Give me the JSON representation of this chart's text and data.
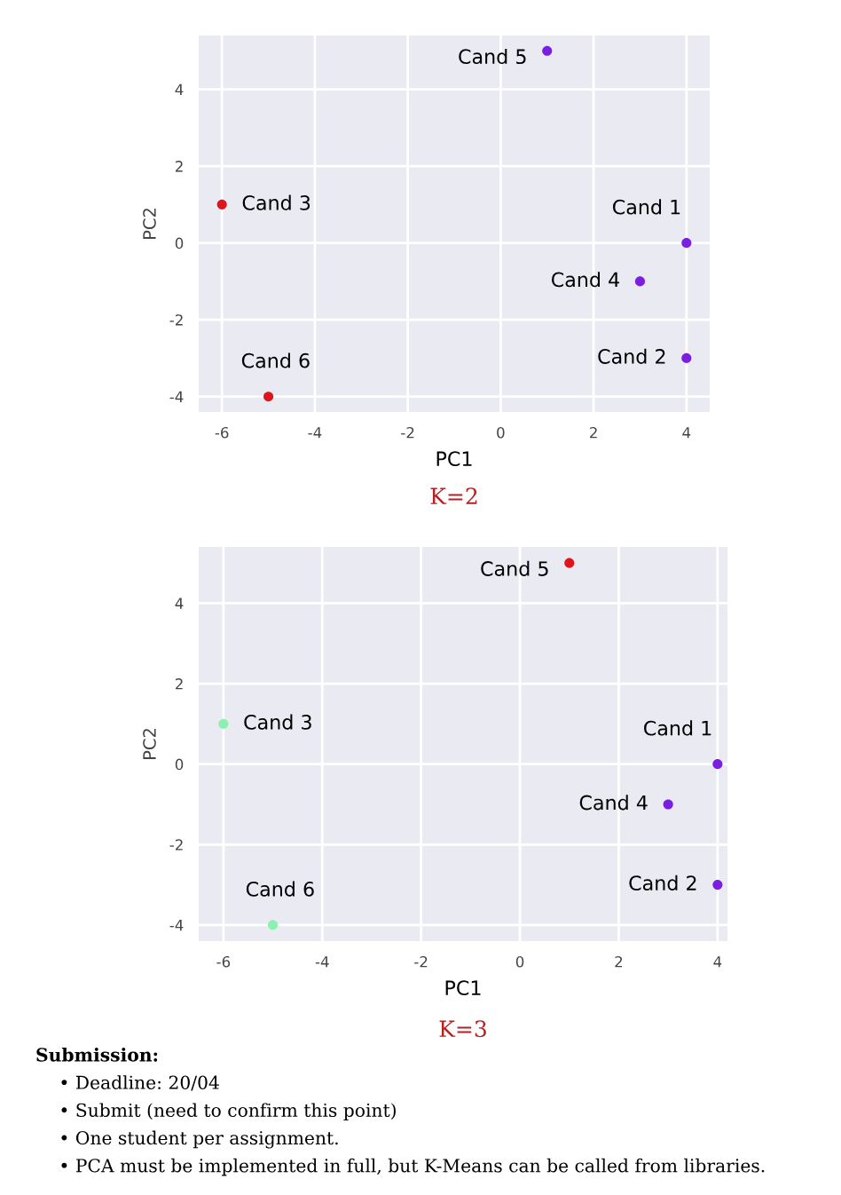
{
  "chart_data": [
    {
      "type": "scatter",
      "title": "K=2",
      "xlabel": "PC1",
      "ylabel": "PC2",
      "xlim": [
        -6.5,
        4.5
      ],
      "ylim": [
        -4.4,
        5.4
      ],
      "xticks": [
        -6,
        -4,
        -2,
        0,
        2,
        4
      ],
      "yticks": [
        -4,
        -2,
        0,
        2,
        4
      ],
      "grid": true,
      "marker": "circle",
      "legend": false,
      "series": [
        {
          "color": "#7a1fe0",
          "x": [
            4,
            4,
            3,
            1
          ],
          "values": [
            0,
            -3,
            -1,
            5
          ]
        },
        {
          "color": "#e0141c",
          "x": [
            -6,
            -5
          ],
          "values": [
            1,
            -4
          ]
        }
      ],
      "annotations": [
        {
          "text": "Cand 1",
          "x": 4,
          "y": 0
        },
        {
          "text": "Cand 2",
          "x": 4,
          "y": -3
        },
        {
          "text": "Cand 3",
          "x": -6,
          "y": 1
        },
        {
          "text": "Cand 4",
          "x": 3,
          "y": -1
        },
        {
          "text": "Cand 5",
          "x": 1,
          "y": 5
        },
        {
          "text": "Cand 6",
          "x": -5,
          "y": -4
        }
      ]
    },
    {
      "type": "scatter",
      "title": "K=3",
      "xlabel": "PC1",
      "ylabel": "PC2",
      "xlim": [
        -6.5,
        4.2
      ],
      "ylim": [
        -4.4,
        5.4
      ],
      "xticks": [
        -6,
        -4,
        -2,
        0,
        2,
        4
      ],
      "yticks": [
        -4,
        -2,
        0,
        2,
        4
      ],
      "grid": true,
      "marker": "circle",
      "legend": false,
      "series": [
        {
          "color": "#7a1fe0",
          "x": [
            4,
            4,
            3
          ],
          "values": [
            0,
            -3,
            -1
          ]
        },
        {
          "color": "#e0141c",
          "x": [
            1
          ],
          "values": [
            5
          ]
        },
        {
          "color": "#8cf0b0",
          "x": [
            -6,
            -5
          ],
          "values": [
            1,
            -4
          ]
        }
      ],
      "annotations": [
        {
          "text": "Cand 1",
          "x": 4,
          "y": 0
        },
        {
          "text": "Cand 2",
          "x": 4,
          "y": -3
        },
        {
          "text": "Cand 3",
          "x": -6,
          "y": 1
        },
        {
          "text": "Cand 4",
          "x": 3,
          "y": -1
        },
        {
          "text": "Cand 5",
          "x": 1,
          "y": 5
        },
        {
          "text": "Cand 6",
          "x": -5,
          "y": -4
        }
      ]
    },
    {
      "type": "other",
      "annotations": [
        "Submission:",
        "• Deadline: 20/04",
        "• Submit (need to confirm this point)",
        "• One student per assignment.",
        "• PCA must be implemented in full, but K-Means can be called from libraries."
      ]
    }
  ]
}
